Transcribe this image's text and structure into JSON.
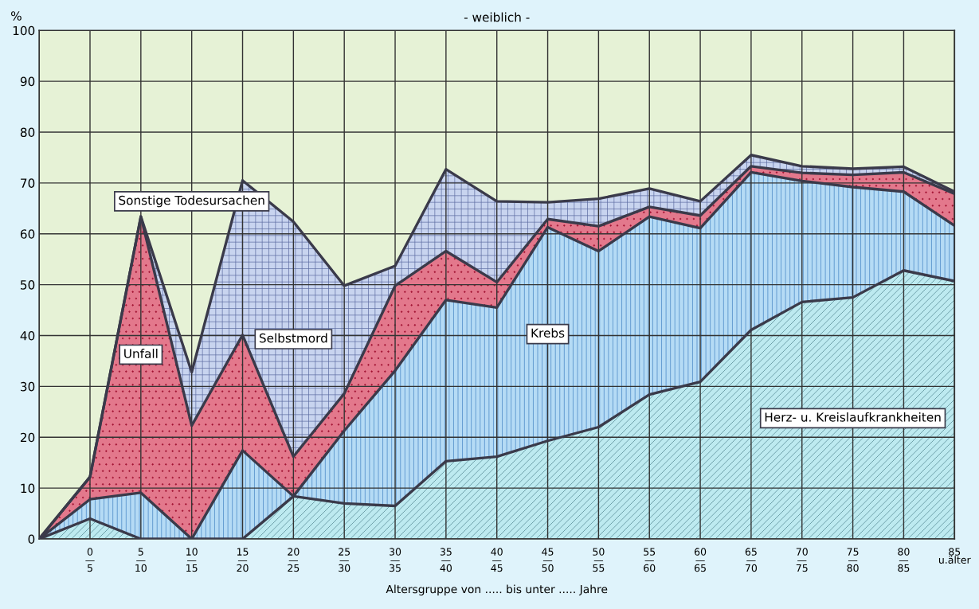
{
  "chart_data": {
    "type": "area",
    "stacked": true,
    "title": "- weiblich -",
    "ylabel": "%",
    "xlabel": "Altersgruppe von ..... bis unter ..... Jahre",
    "categories": [
      null,
      "0\n—\n5",
      "5\n—\n10",
      "10\n—\n15",
      "15\n—\n20",
      "20\n—\n25",
      "25\n—\n30",
      "30\n—\n35",
      "35\n—\n40",
      "40\n—\n45",
      "45\n—\n50",
      "50\n—\n55",
      "55\n—\n60",
      "60\n—\n65",
      "65\n—\n70",
      "70\n—\n75",
      "75\n—\n80",
      "80\n—\n85",
      "85\nu.älter"
    ],
    "series": [
      {
        "name": "Herz- u. Kreislaufkrankheiten",
        "color": "#bdeaf0",
        "values": [
          0,
          4.0,
          0,
          0,
          0,
          8.4,
          7.0,
          6.5,
          15.3,
          16.2,
          19.3,
          22.0,
          28.4,
          30.9,
          41.1,
          46.6,
          47.5,
          52.8,
          50.7
        ]
      },
      {
        "name": "Krebs",
        "color": "#b5dbf5",
        "values": [
          0,
          3.8,
          9.1,
          0,
          17.4,
          0,
          14.3,
          26.6,
          31.7,
          29.3,
          42.0,
          34.6,
          35.0,
          30.2,
          31.0,
          23.8,
          21.7,
          15.5,
          10.9
        ]
      },
      {
        "name": "Unfall",
        "color": "#e3788c",
        "values": [
          0,
          4.4,
          54.3,
          22.3,
          22.7,
          7.8,
          7.3,
          16.7,
          9.6,
          5.0,
          1.6,
          4.9,
          1.9,
          2.5,
          1.2,
          1.6,
          2.4,
          3.8,
          6.3
        ]
      },
      {
        "name": "Selbstmord",
        "color": "#c8d4ef",
        "values": [
          0,
          0,
          0,
          10.5,
          30.4,
          46.2,
          21.2,
          3.9,
          16.1,
          15.9,
          3.3,
          5.4,
          3.6,
          2.8,
          2.2,
          1.3,
          1.2,
          1.1,
          0.4
        ]
      },
      {
        "name": "Sonstige Todesursachen",
        "color": "#e6f2d6",
        "values": [
          100,
          87.8,
          36.6,
          67.2,
          29.5,
          37.6,
          50.2,
          46.3,
          27.3,
          33.6,
          33.8,
          33.1,
          31.1,
          33.6,
          24.5,
          26.7,
          27.2,
          26.8,
          31.7
        ]
      }
    ],
    "ylim": [
      0,
      100
    ],
    "yticks": [
      0,
      10,
      20,
      30,
      40,
      50,
      60,
      70,
      80,
      90,
      100
    ],
    "grid": true
  }
}
